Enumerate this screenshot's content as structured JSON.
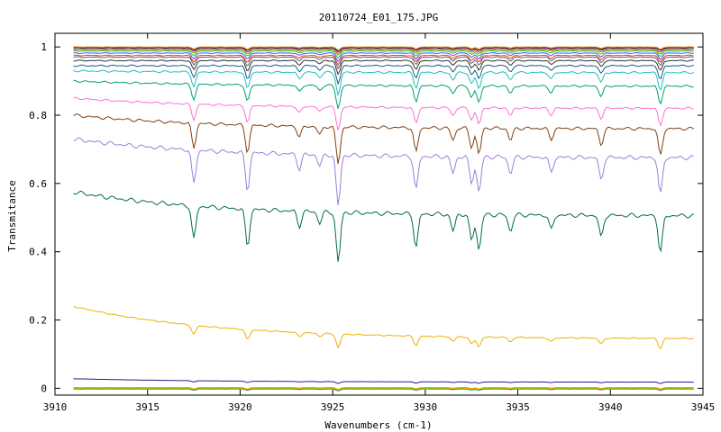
{
  "chart_data": {
    "type": "line",
    "title": "20110724_E01_175.JPG",
    "xlabel": "Wavenumbers (cm-1)",
    "ylabel": "Transmitance",
    "xlim": [
      3910,
      3945
    ],
    "ylim": [
      -0.02,
      1.04
    ],
    "x_ticks": [
      "3910",
      "3915",
      "3920",
      "3925",
      "3930",
      "3935",
      "3940",
      "3945"
    ],
    "y_ticks": [
      "0",
      "0.2",
      "0.4",
      "0.6",
      "0.8",
      "1"
    ],
    "grid": false,
    "legend": "none",
    "x_start": 3911,
    "x_end": 3944.5,
    "absorption_lines": [
      {
        "x": 3917.5,
        "depth": 0.9
      },
      {
        "x": 3920.4,
        "depth": 1.0
      },
      {
        "x": 3923.2,
        "depth": 0.4
      },
      {
        "x": 3924.3,
        "depth": 0.3
      },
      {
        "x": 3925.3,
        "depth": 1.35
      },
      {
        "x": 3929.5,
        "depth": 0.9
      },
      {
        "x": 3931.5,
        "depth": 0.45
      },
      {
        "x": 3932.5,
        "depth": 0.7
      },
      {
        "x": 3932.9,
        "depth": 0.95
      },
      {
        "x": 3934.6,
        "depth": 0.45
      },
      {
        "x": 3936.8,
        "depth": 0.4
      },
      {
        "x": 3939.5,
        "depth": 0.6
      },
      {
        "x": 3942.7,
        "depth": 1.0
      }
    ],
    "series": [
      {
        "color": "#ffd000",
        "start": 0.0,
        "end": 0.0,
        "depth": 0.004
      },
      {
        "color": "#ff8c00",
        "start": 0.002,
        "end": 0.002,
        "depth": 0.004
      },
      {
        "color": "#00a000",
        "start": -0.002,
        "end": -0.002,
        "depth": 0.004
      },
      {
        "color": "#1c1c8c",
        "start": 0.028,
        "end": 0.018,
        "depth": 0.004
      },
      {
        "color": "#f0b000",
        "start": 0.24,
        "end": 0.145,
        "depth": 0.03
      },
      {
        "color": "#007040",
        "start": 0.575,
        "end": 0.505,
        "depth": 0.11
      },
      {
        "color": "#9a80dc",
        "start": 0.73,
        "end": 0.675,
        "depth": 0.11
      },
      {
        "color": "#804010",
        "start": 0.8,
        "end": 0.76,
        "depth": 0.08
      },
      {
        "color": "#ff70d8",
        "start": 0.85,
        "end": 0.82,
        "depth": 0.05
      },
      {
        "color": "#00a070",
        "start": 0.9,
        "end": 0.885,
        "depth": 0.05
      },
      {
        "color": "#20c0c0",
        "start": 0.93,
        "end": 0.925,
        "depth": 0.05
      },
      {
        "color": "#1a5a8a",
        "start": 0.945,
        "end": 0.945,
        "depth": 0.04
      },
      {
        "color": "#303030",
        "start": 0.96,
        "end": 0.96,
        "depth": 0.03
      },
      {
        "color": "#606060",
        "start": 0.97,
        "end": 0.97,
        "depth": 0.025
      },
      {
        "color": "#ff3030",
        "start": 0.975,
        "end": 0.975,
        "depth": 0.02
      },
      {
        "color": "#3060ff",
        "start": 0.982,
        "end": 0.982,
        "depth": 0.018
      },
      {
        "color": "#30c030",
        "start": 0.988,
        "end": 0.988,
        "depth": 0.015
      },
      {
        "color": "#a0a000",
        "start": 0.992,
        "end": 0.992,
        "depth": 0.012
      },
      {
        "color": "#c04080",
        "start": 0.995,
        "end": 0.995,
        "depth": 0.01
      },
      {
        "color": "#000000",
        "start": 0.998,
        "end": 0.998,
        "depth": 0.008
      },
      {
        "color": "#ff9a30",
        "start": 1.0,
        "end": 1.0,
        "depth": 0.006
      }
    ]
  }
}
